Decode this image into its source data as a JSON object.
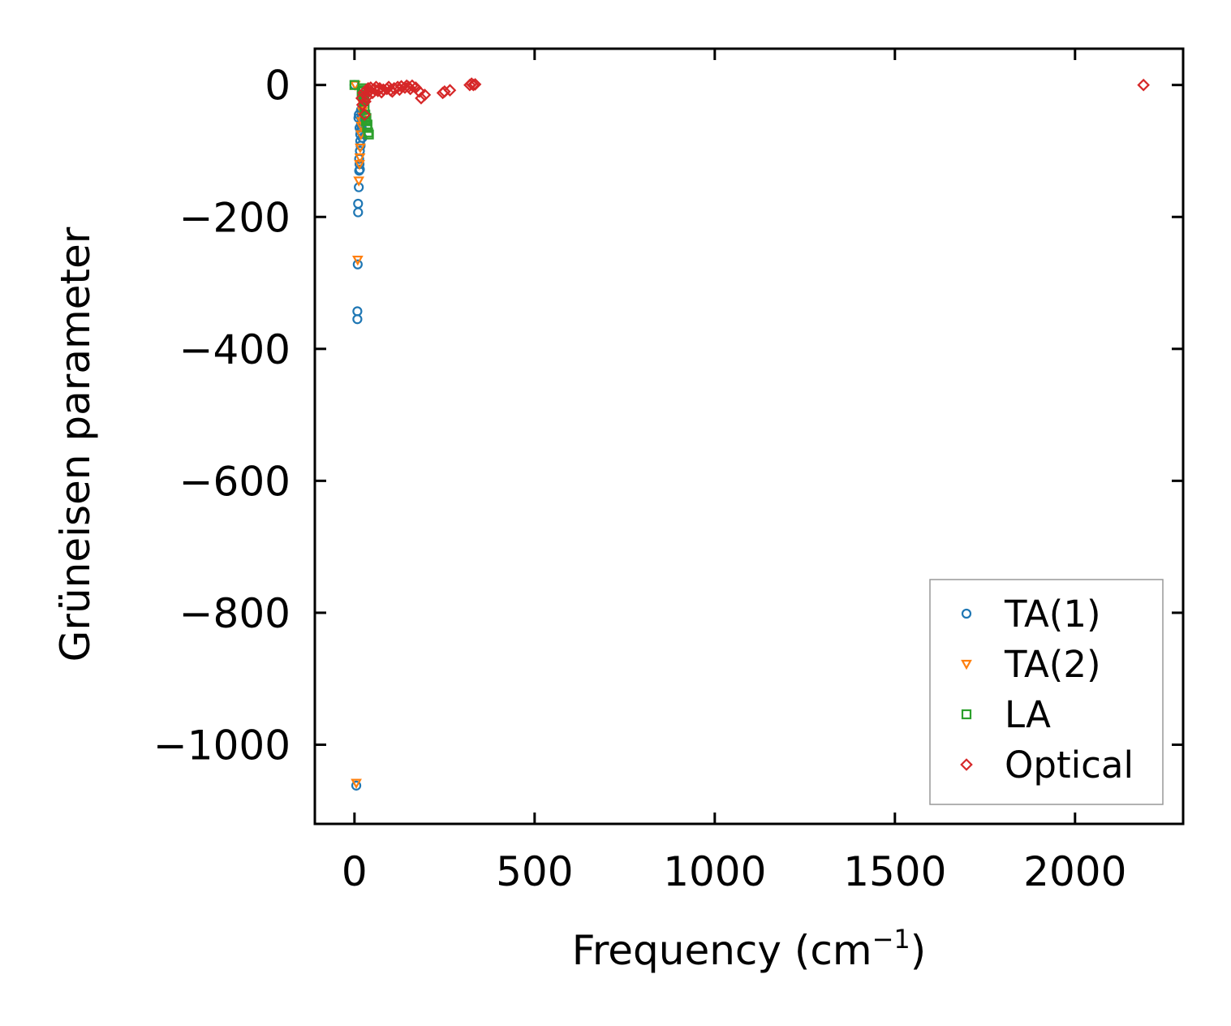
{
  "chart_data": {
    "type": "scatter",
    "xlabel": "Frequency (cm",
    "xlabel_sup": "−1",
    "xlabel_end": ")",
    "ylabel": "Grüneisen parameter",
    "xlim": [
      -110,
      2300
    ],
    "ylim": [
      -1120,
      55
    ],
    "x_ticks": [
      0,
      500,
      1000,
      1500,
      2000
    ],
    "y_ticks": [
      0,
      -200,
      -400,
      -600,
      -800,
      -1000
    ],
    "x_tick_labels": [
      "0",
      "500",
      "1000",
      "1500",
      "2000"
    ],
    "y_tick_labels": [
      "0",
      "−200",
      "−400",
      "−600",
      "−800",
      "−1000"
    ],
    "grid": false,
    "legend_position": "bottom-right",
    "series": [
      {
        "name": "TA(1)",
        "marker": "circle",
        "color": "#1f77b4",
        "points": [
          [
            0,
            0
          ],
          [
            5,
            -1062
          ],
          [
            8,
            -355
          ],
          [
            8,
            -343
          ],
          [
            9,
            -272
          ],
          [
            10,
            -193
          ],
          [
            10,
            -180
          ],
          [
            12,
            -155
          ],
          [
            13,
            -130
          ],
          [
            14,
            -120
          ],
          [
            15,
            -100
          ],
          [
            16,
            -85
          ],
          [
            17,
            -70
          ],
          [
            18,
            -60
          ],
          [
            19,
            -50
          ],
          [
            20,
            -45
          ],
          [
            21,
            -40
          ],
          [
            22,
            -55
          ],
          [
            16,
            -75
          ],
          [
            14,
            -65
          ],
          [
            12,
            -45
          ],
          [
            11,
            -50
          ],
          [
            18,
            -38
          ],
          [
            20,
            -65
          ],
          [
            22,
            -80
          ],
          [
            17,
            -92
          ],
          [
            13,
            -112
          ],
          [
            15,
            -128
          ]
        ]
      },
      {
        "name": "TA(2)",
        "marker": "triangle-down",
        "color": "#ff7f0e",
        "points": [
          [
            2,
            0
          ],
          [
            5,
            -1058
          ],
          [
            9,
            -265
          ],
          [
            12,
            -145
          ],
          [
            14,
            -120
          ],
          [
            16,
            -95
          ],
          [
            18,
            -75
          ],
          [
            20,
            -55
          ],
          [
            22,
            -40
          ],
          [
            24,
            -30
          ],
          [
            26,
            -25
          ],
          [
            15,
            -110
          ],
          [
            19,
            -62
          ],
          [
            23,
            -48
          ]
        ]
      },
      {
        "name": "LA",
        "marker": "square",
        "color": "#2ca02c",
        "points": [
          [
            0,
            0
          ],
          [
            20,
            -10
          ],
          [
            22,
            -5
          ],
          [
            24,
            -15
          ],
          [
            26,
            -25
          ],
          [
            28,
            -35
          ],
          [
            30,
            -45
          ],
          [
            32,
            -55
          ],
          [
            35,
            -65
          ],
          [
            38,
            -72
          ],
          [
            40,
            -75
          ],
          [
            25,
            -8
          ],
          [
            27,
            -20
          ],
          [
            33,
            -50
          ],
          [
            36,
            -60
          ]
        ]
      },
      {
        "name": "Optical",
        "marker": "diamond",
        "color": "#d62728",
        "points": [
          [
            20,
            -20
          ],
          [
            22,
            -30
          ],
          [
            25,
            -12
          ],
          [
            28,
            -45
          ],
          [
            32,
            -8
          ],
          [
            38,
            -5
          ],
          [
            45,
            -4
          ],
          [
            55,
            -6
          ],
          [
            60,
            -3
          ],
          [
            70,
            -5
          ],
          [
            80,
            -7
          ],
          [
            90,
            -6
          ],
          [
            100,
            -8
          ],
          [
            110,
            -5
          ],
          [
            120,
            -3
          ],
          [
            130,
            -2
          ],
          [
            140,
            -4
          ],
          [
            150,
            -3
          ],
          [
            160,
            -1
          ],
          [
            170,
            -4
          ],
          [
            180,
            -10
          ],
          [
            185,
            -20
          ],
          [
            195,
            -15
          ],
          [
            245,
            -12
          ],
          [
            250,
            -10
          ],
          [
            265,
            -8
          ],
          [
            320,
            0
          ],
          [
            325,
            2
          ],
          [
            330,
            0
          ],
          [
            335,
            1
          ],
          [
            2190,
            0
          ],
          [
            50,
            -12
          ],
          [
            65,
            -9
          ],
          [
            75,
            -11
          ],
          [
            95,
            -3
          ],
          [
            105,
            -10
          ],
          [
            125,
            -7
          ],
          [
            145,
            -1
          ],
          [
            155,
            -6
          ],
          [
            30,
            -25
          ],
          [
            35,
            -18
          ],
          [
            40,
            -10
          ]
        ]
      }
    ]
  }
}
